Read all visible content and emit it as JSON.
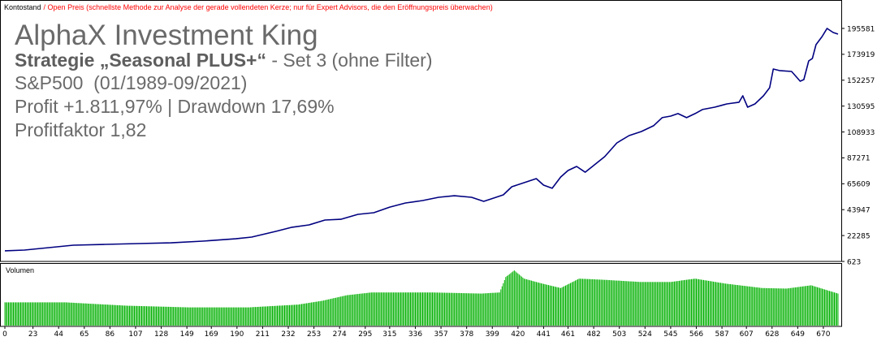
{
  "legend": {
    "series_name": "Kontostand",
    "price_mode": "/ Open Preis (schnellste Methode zur Analyse der gerade vollendeten Kerze; nur für Expert Advisors, die den Eröffnungspreis überwachen)"
  },
  "overlay": {
    "title": "AlphaX Investment King",
    "strategy_name": "Strategie „Seasonal PLUS+“",
    "strategy_set": " - Set 3 (ohne Filter)",
    "market": "S&P500  (01/1989-09/2021)",
    "profit": "Profit +1.811,97% | Drawdown 17,69%",
    "profit_factor": "Profitfaktor 1,82"
  },
  "volume_panel": {
    "label": "Volumen"
  },
  "colors": {
    "legend_series": "#000000",
    "legend_price_mode": "#FF0000",
    "overlay_text": "#6A6A6A",
    "overlay_strategy": "#5E5E5E",
    "axis": "#000000"
  },
  "chart_data": {
    "type": "line",
    "xlim": [
      0,
      682
    ],
    "ylim": [
      623,
      195581
    ],
    "x_ticks": [
      0,
      23,
      44,
      65,
      86,
      107,
      128,
      149,
      169,
      190,
      211,
      232,
      253,
      274,
      295,
      315,
      336,
      357,
      378,
      399,
      420,
      441,
      461,
      482,
      503,
      524,
      545,
      566,
      587,
      607,
      628,
      649,
      670
    ],
    "y_ticks": [
      623,
      22285,
      43947,
      65609,
      87271,
      108933,
      130595,
      152257,
      173919,
      195581
    ],
    "series": [
      {
        "name": "Kontostand",
        "color": "#000080",
        "x": [
          0,
          16,
          36,
          56,
          82,
          109,
          136,
          162,
          189,
          202,
          222,
          235,
          249,
          262,
          275,
          289,
          302,
          315,
          328,
          342,
          355,
          368,
          382,
          392,
          398,
          408,
          415,
          425,
          435,
          441,
          448,
          455,
          461,
          468,
          475,
          481,
          491,
          501,
          511,
          521,
          531,
          538,
          545,
          551,
          558,
          565,
          571,
          581,
          591,
          601,
          604,
          608,
          614,
          621,
          626,
          629,
          634,
          644,
          651,
          654,
          658,
          661,
          664,
          669,
          673,
          678,
          682
        ],
        "y": [
          9500,
          10100,
          12200,
          14200,
          14900,
          15600,
          16200,
          17600,
          19600,
          21000,
          25800,
          29200,
          31200,
          35300,
          35900,
          40000,
          41400,
          46100,
          49500,
          51600,
          54300,
          55600,
          54300,
          50900,
          52900,
          56300,
          63100,
          66500,
          69900,
          64500,
          61800,
          71300,
          76700,
          80100,
          75300,
          80100,
          88300,
          99800,
          105900,
          109300,
          114100,
          120900,
          122200,
          124300,
          120900,
          124300,
          127700,
          129700,
          132400,
          133800,
          139200,
          129700,
          132400,
          139200,
          146000,
          161600,
          160300,
          159600,
          151400,
          152800,
          168400,
          170400,
          182000,
          188800,
          195600,
          192200,
          190800
        ]
      }
    ],
    "volume": {
      "name": "Volumen",
      "color": "#00B000",
      "x": [
        0,
        50,
        100,
        150,
        200,
        240,
        260,
        280,
        300,
        350,
        390,
        405,
        410,
        417,
        425,
        440,
        455,
        470,
        490,
        520,
        545,
        565,
        590,
        620,
        640,
        660,
        682
      ],
      "level": [
        0.42,
        0.42,
        0.36,
        0.33,
        0.33,
        0.38,
        0.45,
        0.55,
        0.6,
        0.6,
        0.58,
        0.6,
        0.88,
        1.0,
        0.85,
        0.76,
        0.68,
        0.85,
        0.83,
        0.79,
        0.79,
        0.85,
        0.76,
        0.68,
        0.67,
        0.73,
        0.58
      ]
    }
  }
}
